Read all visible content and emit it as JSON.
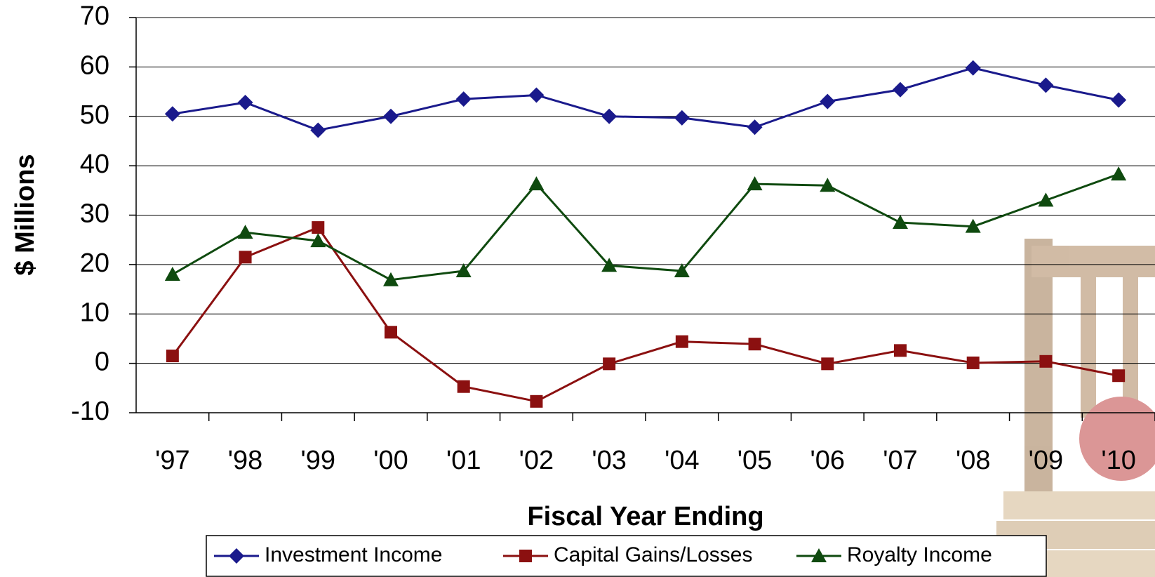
{
  "chart_data": {
    "type": "line",
    "x_label": "Fiscal Year Ending",
    "y_label": "$ Millions",
    "categories": [
      "'97",
      "'98",
      "'99",
      "'00",
      "'01",
      "'02",
      "'03",
      "'04",
      "'05",
      "'06",
      "'07",
      "'08",
      "'09",
      "'10"
    ],
    "series": [
      {
        "name": "Investment Income",
        "color": "#1a1a8c",
        "marker": "diamond",
        "values": [
          50.5,
          52.8,
          47.2,
          50,
          53.5,
          54.3,
          50,
          49.7,
          47.8,
          53,
          55.4,
          59.8,
          56.3,
          53.3
        ]
      },
      {
        "name": "Capital Gains/Losses",
        "color": "#8b1010",
        "marker": "square",
        "values": [
          1.5,
          21.5,
          27.5,
          6.3,
          -4.7,
          -7.7,
          -0.1,
          4.4,
          3.9,
          -0.1,
          2.6,
          0.1,
          0.4,
          -2.5
        ]
      },
      {
        "name": "Royalty Income",
        "color": "#0f4a0f",
        "marker": "triangle",
        "values": [
          18,
          26.5,
          24.8,
          16.9,
          18.7,
          36.3,
          19.8,
          18.7,
          36.3,
          36,
          28.5,
          27.7,
          33,
          38.3
        ]
      }
    ],
    "ylim": [
      -10,
      70
    ],
    "yticks": [
      -10,
      0,
      10,
      20,
      30,
      40,
      50,
      60,
      70
    ],
    "grid": true,
    "legend": "bottom"
  }
}
